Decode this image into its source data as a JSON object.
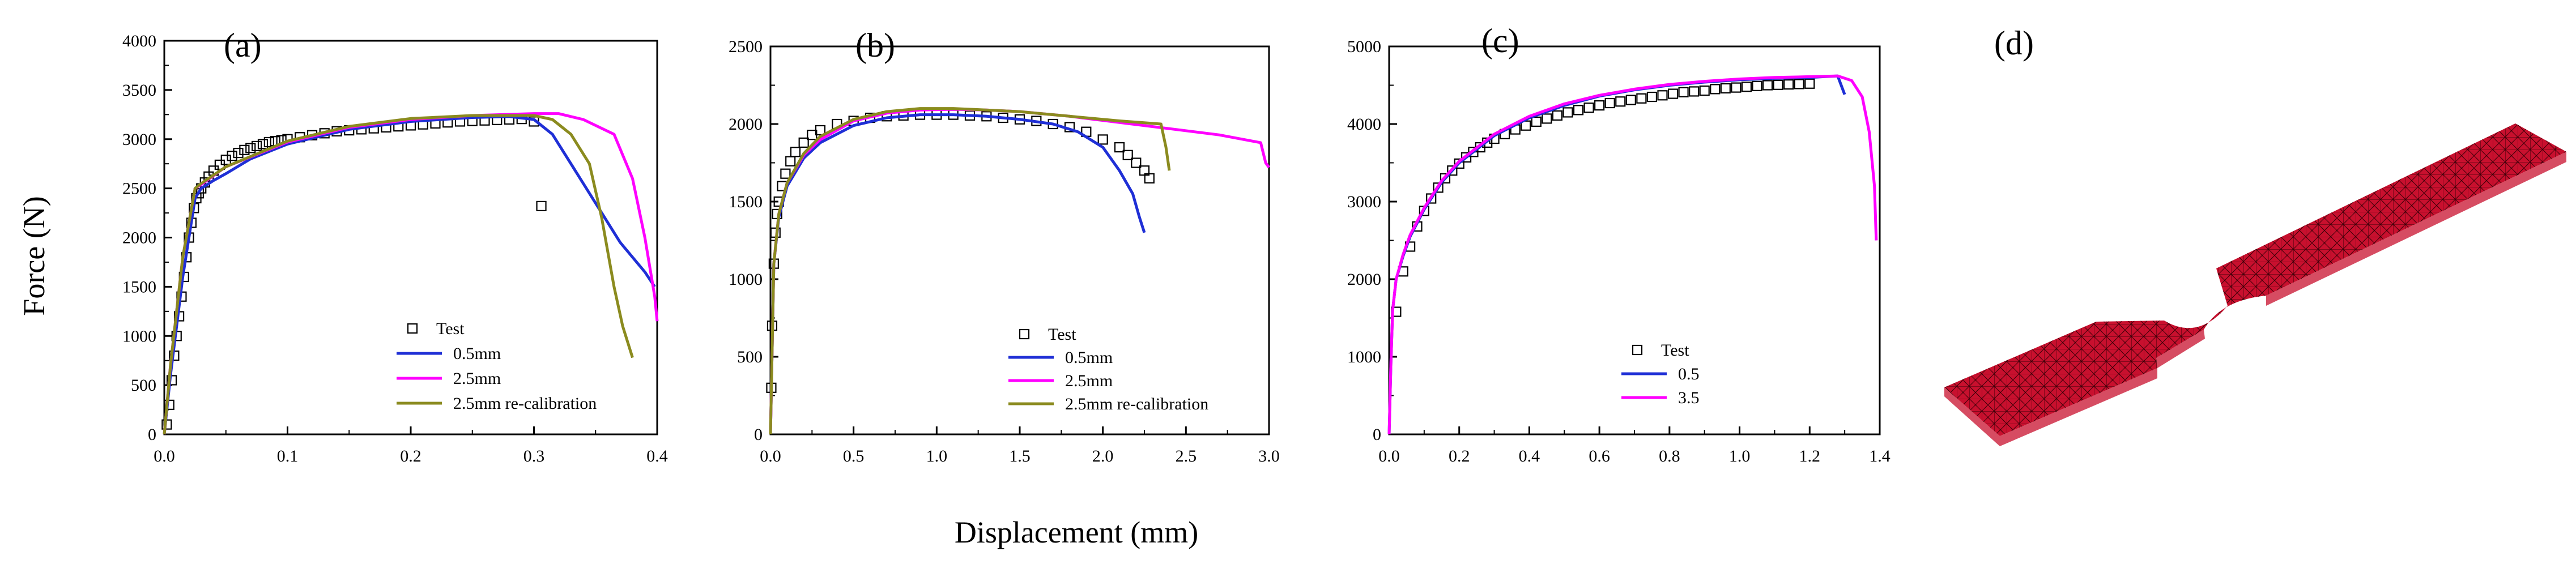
{
  "figure": {
    "ylabel": "Force (N)",
    "xlabel": "Displacement (mm)",
    "mesh_label": "(d)",
    "mesh_color": "#c8102e"
  },
  "chart_data": [
    {
      "type": "line",
      "panel_label": "(a)",
      "xlim": [
        0,
        0.4
      ],
      "ylim": [
        0,
        4000
      ],
      "xticks": [
        0.0,
        0.1,
        0.2,
        0.3,
        0.4
      ],
      "xtick_labels": [
        "0.0",
        "0.1",
        "0.2",
        "0.3",
        "0.4"
      ],
      "yticks": [
        0,
        500,
        1000,
        1500,
        2000,
        2500,
        3000,
        3500,
        4000
      ],
      "ytick_labels": [
        "0",
        "500",
        "1000",
        "1500",
        "2000",
        "2500",
        "3000",
        "3500",
        "4000"
      ],
      "legend": [
        "Test",
        "0.5mm",
        "2.5mm",
        "2.5mm re-calibration"
      ],
      "series": [
        {
          "name": "Test",
          "style": "marker",
          "color": "#000000",
          "x": [
            0.002,
            0.004,
            0.006,
            0.008,
            0.01,
            0.012,
            0.014,
            0.016,
            0.018,
            0.02,
            0.022,
            0.024,
            0.026,
            0.028,
            0.03,
            0.033,
            0.036,
            0.04,
            0.045,
            0.05,
            0.055,
            0.06,
            0.065,
            0.07,
            0.075,
            0.08,
            0.085,
            0.09,
            0.095,
            0.1,
            0.11,
            0.12,
            0.13,
            0.14,
            0.15,
            0.16,
            0.17,
            0.18,
            0.19,
            0.2,
            0.21,
            0.22,
            0.23,
            0.24,
            0.25,
            0.26,
            0.27,
            0.28,
            0.29,
            0.3,
            0.306
          ],
          "y": [
            100,
            300,
            550,
            800,
            1000,
            1200,
            1400,
            1600,
            1800,
            2000,
            2150,
            2300,
            2400,
            2450,
            2500,
            2560,
            2620,
            2680,
            2740,
            2790,
            2830,
            2860,
            2890,
            2910,
            2930,
            2950,
            2970,
            2980,
            2990,
            3000,
            3020,
            3040,
            3060,
            3080,
            3090,
            3100,
            3110,
            3120,
            3130,
            3140,
            3150,
            3160,
            3170,
            3180,
            3185,
            3190,
            3195,
            3200,
            3205,
            3180,
            2320
          ]
        },
        {
          "name": "0.5mm",
          "style": "line",
          "color": "#1f2fd6",
          "x": [
            0,
            0.005,
            0.015,
            0.025,
            0.03,
            0.04,
            0.05,
            0.07,
            0.1,
            0.15,
            0.2,
            0.25,
            0.28,
            0.3,
            0.315,
            0.33,
            0.35,
            0.37,
            0.39,
            0.398
          ],
          "y": [
            0,
            600,
            1600,
            2400,
            2500,
            2580,
            2650,
            2800,
            2950,
            3100,
            3180,
            3220,
            3230,
            3200,
            3050,
            2750,
            2350,
            1950,
            1650,
            1500
          ]
        },
        {
          "name": "2.5mm",
          "style": "line",
          "color": "#ff00ff",
          "x": [
            0,
            0.005,
            0.015,
            0.025,
            0.03,
            0.05,
            0.1,
            0.15,
            0.2,
            0.25,
            0.3,
            0.32,
            0.34,
            0.365,
            0.38,
            0.39,
            0.398,
            0.4
          ],
          "y": [
            0,
            700,
            1800,
            2500,
            2540,
            2720,
            2970,
            3120,
            3200,
            3240,
            3260,
            3260,
            3200,
            3050,
            2600,
            2000,
            1400,
            1150
          ]
        },
        {
          "name": "2.5mm re-calibration",
          "style": "line",
          "color": "#8b8b1f",
          "x": [
            0,
            0.005,
            0.015,
            0.025,
            0.03,
            0.05,
            0.1,
            0.15,
            0.2,
            0.25,
            0.3,
            0.315,
            0.33,
            0.345,
            0.355,
            0.365,
            0.372,
            0.38
          ],
          "y": [
            0,
            700,
            1800,
            2500,
            2550,
            2720,
            2980,
            3130,
            3210,
            3240,
            3240,
            3200,
            3050,
            2750,
            2200,
            1500,
            1100,
            780
          ]
        }
      ]
    },
    {
      "type": "line",
      "panel_label": "(b)",
      "xlim": [
        0,
        3.0
      ],
      "ylim": [
        0,
        2500
      ],
      "xticks": [
        0.0,
        0.5,
        1.0,
        1.5,
        2.0,
        2.5,
        3.0
      ],
      "xtick_labels": [
        "0.0",
        "0.5",
        "1.0",
        "1.5",
        "2.0",
        "2.5",
        "3.0"
      ],
      "yticks": [
        0,
        500,
        1000,
        1500,
        2000,
        2500
      ],
      "ytick_labels": [
        "0",
        "500",
        "1000",
        "1500",
        "2000",
        "2500"
      ],
      "legend": [
        "Test",
        "0.5mm",
        "2.5mm",
        "2.5mm re-calibration"
      ],
      "series": [
        {
          "name": "Test",
          "style": "marker",
          "color": "#000000",
          "x": [
            0.005,
            0.01,
            0.02,
            0.03,
            0.04,
            0.05,
            0.07,
            0.09,
            0.12,
            0.15,
            0.2,
            0.25,
            0.3,
            0.4,
            0.5,
            0.6,
            0.7,
            0.8,
            0.9,
            1.0,
            1.1,
            1.2,
            1.3,
            1.4,
            1.5,
            1.6,
            1.7,
            1.8,
            1.9,
            2.0,
            2.1,
            2.15,
            2.2,
            2.25,
            2.28
          ],
          "y": [
            300,
            700,
            1100,
            1300,
            1420,
            1500,
            1600,
            1680,
            1760,
            1820,
            1880,
            1930,
            1960,
            2000,
            2020,
            2040,
            2050,
            2055,
            2060,
            2060,
            2060,
            2055,
            2050,
            2040,
            2030,
            2020,
            2000,
            1980,
            1950,
            1900,
            1850,
            1800,
            1750,
            1700,
            1650
          ]
        },
        {
          "name": "0.5mm",
          "style": "line",
          "color": "#1f2fd6",
          "x": [
            0,
            0.02,
            0.05,
            0.1,
            0.2,
            0.3,
            0.5,
            0.7,
            0.9,
            1.1,
            1.3,
            1.5,
            1.7,
            1.85,
            2.0,
            2.1,
            2.18,
            2.22,
            2.25
          ],
          "y": [
            0,
            1100,
            1400,
            1600,
            1780,
            1880,
            1990,
            2040,
            2060,
            2060,
            2050,
            2030,
            2000,
            1950,
            1850,
            1700,
            1550,
            1400,
            1300
          ]
        },
        {
          "name": "2.5mm",
          "style": "line",
          "color": "#ff00ff",
          "x": [
            0,
            0.02,
            0.05,
            0.1,
            0.2,
            0.3,
            0.5,
            0.7,
            0.9,
            1.1,
            1.3,
            1.5,
            1.8,
            2.1,
            2.4,
            2.7,
            2.95,
            2.98,
            3.0
          ],
          "y": [
            0,
            1100,
            1420,
            1620,
            1800,
            1900,
            2020,
            2070,
            2090,
            2095,
            2090,
            2080,
            2050,
            2010,
            1970,
            1930,
            1880,
            1750,
            1720
          ]
        },
        {
          "name": "2.5mm re-calibration",
          "style": "line",
          "color": "#8b8b1f",
          "x": [
            0,
            0.02,
            0.05,
            0.1,
            0.2,
            0.3,
            0.5,
            0.7,
            0.9,
            1.1,
            1.3,
            1.5,
            1.8,
            2.1,
            2.35,
            2.38,
            2.4
          ],
          "y": [
            0,
            1100,
            1420,
            1620,
            1810,
            1920,
            2030,
            2080,
            2100,
            2100,
            2090,
            2080,
            2050,
            2020,
            2000,
            1850,
            1700
          ]
        }
      ]
    },
    {
      "type": "line",
      "panel_label": "(c)",
      "xlim": [
        0,
        1.4
      ],
      "ylim": [
        0,
        5000
      ],
      "xticks": [
        0.0,
        0.2,
        0.4,
        0.6,
        0.8,
        1.0,
        1.2,
        1.4
      ],
      "xtick_labels": [
        "0.0",
        "0.2",
        "0.4",
        "0.6",
        "0.8",
        "1.0",
        "1.2",
        "1.4"
      ],
      "yticks": [
        0,
        1000,
        2000,
        3000,
        4000,
        5000
      ],
      "ytick_labels": [
        "0",
        "1000",
        "2000",
        "3000",
        "4000",
        "5000"
      ],
      "legend": [
        "Test",
        "0.5",
        "3.5"
      ],
      "series": [
        {
          "name": "Test",
          "style": "marker",
          "color": "#000000",
          "x": [
            0.02,
            0.04,
            0.06,
            0.08,
            0.1,
            0.12,
            0.14,
            0.16,
            0.18,
            0.2,
            0.22,
            0.24,
            0.26,
            0.28,
            0.3,
            0.33,
            0.36,
            0.39,
            0.42,
            0.45,
            0.48,
            0.51,
            0.54,
            0.57,
            0.6,
            0.63,
            0.66,
            0.69,
            0.72,
            0.75,
            0.78,
            0.81,
            0.84,
            0.87,
            0.9,
            0.93,
            0.96,
            0.99,
            1.02,
            1.05,
            1.08,
            1.11,
            1.14,
            1.17,
            1.2
          ],
          "y": [
            1580,
            2100,
            2420,
            2680,
            2880,
            3040,
            3180,
            3300,
            3400,
            3490,
            3570,
            3640,
            3700,
            3760,
            3810,
            3870,
            3930,
            3980,
            4030,
            4070,
            4110,
            4150,
            4180,
            4210,
            4240,
            4270,
            4290,
            4310,
            4330,
            4350,
            4370,
            4390,
            4410,
            4420,
            4430,
            4450,
            4460,
            4470,
            4480,
            4490,
            4500,
            4505,
            4510,
            4515,
            4520
          ]
        },
        {
          "name": "0.5",
          "style": "line",
          "color": "#1f2fd6",
          "x": [
            0,
            0.005,
            0.01,
            0.02,
            0.04,
            0.06,
            0.1,
            0.15,
            0.2,
            0.3,
            0.4,
            0.5,
            0.6,
            0.7,
            0.8,
            0.9,
            1.0,
            1.1,
            1.2,
            1.28,
            1.3
          ],
          "y": [
            0,
            900,
            1600,
            2000,
            2300,
            2550,
            2900,
            3250,
            3500,
            3850,
            4080,
            4240,
            4360,
            4440,
            4500,
            4540,
            4570,
            4590,
            4600,
            4620,
            4380
          ]
        },
        {
          "name": "3.5",
          "style": "line",
          "color": "#ff00ff",
          "x": [
            0,
            0.005,
            0.01,
            0.02,
            0.04,
            0.06,
            0.1,
            0.15,
            0.2,
            0.3,
            0.4,
            0.5,
            0.6,
            0.7,
            0.8,
            0.9,
            1.0,
            1.1,
            1.2,
            1.28,
            1.32,
            1.35,
            1.37,
            1.385,
            1.39
          ],
          "y": [
            0,
            900,
            1600,
            2000,
            2320,
            2570,
            2920,
            3270,
            3520,
            3870,
            4100,
            4260,
            4370,
            4450,
            4510,
            4550,
            4580,
            4600,
            4610,
            4620,
            4560,
            4350,
            3900,
            3200,
            2500
          ]
        }
      ]
    }
  ]
}
